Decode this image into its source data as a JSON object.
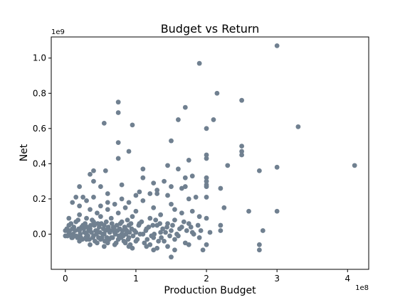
{
  "chart_data": {
    "type": "scatter",
    "title": "Budget vs Return",
    "xlabel": "Production Budget",
    "ylabel": "Net",
    "x_offset_label": "1e8",
    "y_offset_label": "1e9",
    "xlim": [
      -0.2,
      4.3
    ],
    "ylim": [
      -0.2,
      1.12
    ],
    "x_ticks": [
      0,
      1,
      2,
      3,
      4
    ],
    "x_tick_labels": [
      "0",
      "1",
      "2",
      "3",
      "4"
    ],
    "y_ticks": [
      0.0,
      0.2,
      0.4,
      0.6,
      0.8,
      1.0
    ],
    "y_tick_labels": [
      "0.0",
      "0.2",
      "0.4",
      "0.6",
      "0.8",
      "1.0"
    ],
    "grid": false,
    "marker_color": "#708090",
    "points": [
      [
        3.0,
        1.07
      ],
      [
        1.9,
        0.97
      ],
      [
        2.15,
        0.8
      ],
      [
        2.5,
        0.76
      ],
      [
        0.75,
        0.75
      ],
      [
        1.7,
        0.72
      ],
      [
        0.75,
        0.69
      ],
      [
        2.1,
        0.65
      ],
      [
        1.6,
        0.65
      ],
      [
        0.55,
        0.63
      ],
      [
        0.95,
        0.62
      ],
      [
        3.3,
        0.61
      ],
      [
        2.0,
        0.6
      ],
      [
        1.5,
        0.53
      ],
      [
        0.75,
        0.52
      ],
      [
        2.5,
        0.5
      ],
      [
        2.5,
        0.47
      ],
      [
        2.5,
        0.45
      ],
      [
        0.9,
        0.47
      ],
      [
        2.0,
        0.45
      ],
      [
        2.0,
        0.43
      ],
      [
        1.75,
        0.42
      ],
      [
        4.1,
        0.39
      ],
      [
        2.3,
        0.39
      ],
      [
        3.0,
        0.38
      ],
      [
        1.45,
        0.39
      ],
      [
        0.75,
        0.43
      ],
      [
        1.1,
        0.37
      ],
      [
        1.6,
        0.37
      ],
      [
        2.75,
        0.36
      ],
      [
        0.4,
        0.36
      ],
      [
        0.57,
        0.36
      ],
      [
        0.35,
        0.34
      ],
      [
        1.8,
        0.33
      ],
      [
        1.7,
        0.32
      ],
      [
        2.0,
        0.32
      ],
      [
        1.1,
        0.32
      ],
      [
        1.4,
        0.3
      ],
      [
        1.25,
        0.29
      ],
      [
        2.0,
        0.3
      ],
      [
        2.0,
        0.28
      ],
      [
        2.0,
        0.27
      ],
      [
        0.8,
        0.28
      ],
      [
        0.4,
        0.3
      ],
      [
        0.5,
        0.27
      ],
      [
        0.2,
        0.27
      ],
      [
        1.65,
        0.26
      ],
      [
        1.7,
        0.27
      ],
      [
        1.5,
        0.27
      ],
      [
        1.3,
        0.25
      ],
      [
        2.2,
        0.26
      ],
      [
        1.05,
        0.24
      ],
      [
        0.6,
        0.23
      ],
      [
        1.0,
        0.22
      ],
      [
        0.15,
        0.21
      ],
      [
        0.25,
        0.21
      ],
      [
        0.4,
        0.21
      ],
      [
        0.8,
        0.2
      ],
      [
        1.2,
        0.23
      ],
      [
        1.3,
        0.23
      ],
      [
        1.45,
        0.22
      ],
      [
        1.75,
        0.2
      ],
      [
        1.85,
        0.21
      ],
      [
        2.0,
        0.21
      ],
      [
        0.1,
        0.18
      ],
      [
        0.3,
        0.19
      ],
      [
        0.6,
        0.18
      ],
      [
        0.9,
        0.18
      ],
      [
        1.1,
        0.19
      ],
      [
        0.2,
        0.16
      ],
      [
        0.5,
        0.16
      ],
      [
        0.7,
        0.17
      ],
      [
        1.5,
        0.17
      ],
      [
        2.25,
        0.15
      ],
      [
        0.35,
        0.14
      ],
      [
        0.6,
        0.14
      ],
      [
        0.85,
        0.15
      ],
      [
        1.25,
        0.15
      ],
      [
        1.55,
        0.14
      ],
      [
        2.6,
        0.13
      ],
      [
        3.0,
        0.13
      ],
      [
        1.8,
        0.13
      ],
      [
        0.45,
        0.12
      ],
      [
        0.75,
        0.12
      ],
      [
        1.0,
        0.13
      ],
      [
        1.65,
        0.12
      ],
      [
        0.2,
        0.11
      ],
      [
        0.5,
        0.1
      ],
      [
        0.95,
        0.1
      ],
      [
        1.35,
        0.11
      ],
      [
        1.9,
        0.1
      ],
      [
        0.05,
        0.09
      ],
      [
        0.3,
        0.09
      ],
      [
        0.65,
        0.09
      ],
      [
        1.2,
        0.09
      ],
      [
        1.55,
        0.08
      ],
      [
        2.0,
        0.09
      ],
      [
        0.15,
        0.07
      ],
      [
        0.4,
        0.07
      ],
      [
        0.8,
        0.07
      ],
      [
        1.05,
        0.06
      ],
      [
        1.45,
        0.06
      ],
      [
        1.75,
        0.06
      ],
      [
        0.05,
        0.05
      ],
      [
        0.25,
        0.05
      ],
      [
        0.55,
        0.05
      ],
      [
        0.9,
        0.05
      ],
      [
        1.3,
        0.05
      ],
      [
        1.65,
        0.04
      ],
      [
        2.2,
        0.05
      ],
      [
        0.1,
        0.03
      ],
      [
        0.35,
        0.03
      ],
      [
        0.6,
        0.03
      ],
      [
        0.85,
        0.03
      ],
      [
        1.15,
        0.03
      ],
      [
        1.5,
        0.02
      ],
      [
        2.05,
        0.01
      ],
      [
        2.2,
        0.02
      ],
      [
        2.8,
        0.02
      ],
      [
        0.0,
        0.02
      ],
      [
        0.2,
        0.02
      ],
      [
        0.45,
        0.02
      ],
      [
        0.7,
        0.01
      ],
      [
        1.0,
        0.01
      ],
      [
        1.35,
        0.01
      ],
      [
        1.8,
        0.01
      ],
      [
        0.05,
        0.0
      ],
      [
        0.3,
        0.0
      ],
      [
        0.55,
        0.0
      ],
      [
        0.8,
        0.0
      ],
      [
        1.1,
        0.0
      ],
      [
        1.6,
        -0.01
      ],
      [
        0.0,
        -0.01
      ],
      [
        0.15,
        -0.01
      ],
      [
        0.4,
        -0.01
      ],
      [
        0.65,
        -0.02
      ],
      [
        0.9,
        -0.02
      ],
      [
        1.25,
        -0.02
      ],
      [
        1.55,
        -0.03
      ],
      [
        1.9,
        -0.02
      ],
      [
        0.1,
        -0.02
      ],
      [
        0.3,
        -0.03
      ],
      [
        0.5,
        -0.03
      ],
      [
        0.75,
        -0.03
      ],
      [
        1.0,
        -0.04
      ],
      [
        1.4,
        -0.04
      ],
      [
        0.2,
        -0.04
      ],
      [
        0.45,
        -0.05
      ],
      [
        0.6,
        -0.05
      ],
      [
        0.85,
        -0.05
      ],
      [
        1.2,
        -0.06
      ],
      [
        1.7,
        -0.05
      ],
      [
        2.0,
        -0.06
      ],
      [
        0.35,
        -0.06
      ],
      [
        0.55,
        -0.07
      ],
      [
        0.9,
        -0.07
      ],
      [
        1.15,
        -0.07
      ],
      [
        1.45,
        -0.07
      ],
      [
        1.75,
        -0.06
      ],
      [
        2.75,
        -0.06
      ],
      [
        1.3,
        -0.08
      ],
      [
        1.55,
        -0.09
      ],
      [
        1.95,
        -0.09
      ],
      [
        2.75,
        -0.09
      ],
      [
        0.95,
        -0.08
      ],
      [
        1.25,
        -0.09
      ],
      [
        1.5,
        -0.13
      ],
      [
        0.7,
        -0.06
      ],
      [
        0.05,
        0.01
      ],
      [
        0.12,
        0.04
      ],
      [
        0.22,
        -0.02
      ],
      [
        0.28,
        0.06
      ],
      [
        0.38,
        0.08
      ],
      [
        0.42,
        -0.04
      ],
      [
        0.48,
        0.04
      ],
      [
        0.52,
        -0.02
      ],
      [
        0.58,
        0.07
      ],
      [
        0.62,
        -0.03
      ],
      [
        0.68,
        0.04
      ],
      [
        0.72,
        -0.05
      ],
      [
        0.78,
        0.06
      ],
      [
        0.82,
        -0.01
      ],
      [
        0.88,
        0.08
      ],
      [
        0.92,
        -0.06
      ],
      [
        0.98,
        0.02
      ],
      [
        1.02,
        -0.03
      ],
      [
        1.08,
        0.07
      ],
      [
        1.12,
        -0.05
      ],
      [
        1.18,
        0.04
      ],
      [
        1.22,
        -0.01
      ],
      [
        1.28,
        0.08
      ],
      [
        1.32,
        -0.04
      ],
      [
        1.38,
        0.03
      ],
      [
        1.42,
        0.01
      ],
      [
        0.08,
        0.06
      ],
      [
        0.18,
        0.08
      ],
      [
        0.26,
        0.03
      ],
      [
        0.32,
        -0.01
      ],
      [
        0.36,
        0.05
      ],
      [
        0.44,
        0.0
      ],
      [
        0.46,
        0.06
      ],
      [
        0.54,
        0.03
      ],
      [
        0.56,
        -0.04
      ],
      [
        0.64,
        0.02
      ],
      [
        0.66,
        0.06
      ],
      [
        0.74,
        0.02
      ],
      [
        0.76,
        -0.01
      ],
      [
        0.84,
        0.04
      ],
      [
        0.86,
        0.0
      ],
      [
        0.94,
        0.03
      ],
      [
        0.96,
        -0.01
      ],
      [
        1.04,
        0.05
      ],
      [
        1.06,
        0.0
      ],
      [
        1.14,
        0.02
      ],
      [
        1.16,
        -0.03
      ],
      [
        1.24,
        0.05
      ],
      [
        1.26,
        0.0
      ],
      [
        1.34,
        0.06
      ],
      [
        1.36,
        -0.02
      ],
      [
        1.44,
        0.04
      ],
      [
        1.48,
        -0.01
      ],
      [
        1.52,
        0.05
      ],
      [
        1.58,
        0.0
      ],
      [
        1.62,
        0.03
      ],
      [
        1.68,
        0.07
      ],
      [
        1.72,
        0.02
      ],
      [
        1.78,
        0.04
      ],
      [
        1.82,
        0.0
      ],
      [
        1.88,
        0.05
      ],
      [
        1.92,
        0.02
      ],
      [
        0.02,
        0.03
      ],
      [
        0.03,
        -0.01
      ],
      [
        0.06,
        0.02
      ],
      [
        0.09,
        -0.02
      ],
      [
        0.11,
        0.0
      ],
      [
        0.14,
        0.02
      ],
      [
        0.17,
        -0.02
      ],
      [
        0.19,
        0.03
      ],
      [
        0.21,
        0.0
      ],
      [
        0.23,
        0.04
      ],
      [
        0.24,
        -0.03
      ],
      [
        0.27,
        0.01
      ],
      [
        0.29,
        -0.02
      ],
      [
        0.31,
        0.04
      ],
      [
        0.33,
        0.02
      ],
      [
        0.34,
        -0.03
      ],
      [
        0.37,
        0.01
      ],
      [
        0.39,
        -0.02
      ],
      [
        0.41,
        0.05
      ],
      [
        0.43,
        0.02
      ],
      [
        0.47,
        -0.02
      ],
      [
        0.49,
        0.01
      ],
      [
        0.51,
        0.06
      ],
      [
        0.53,
        0.0
      ],
      [
        0.57,
        0.02
      ],
      [
        0.59,
        -0.02
      ],
      [
        0.61,
        0.04
      ],
      [
        0.63,
        0.01
      ],
      [
        0.67,
        -0.02
      ],
      [
        0.69,
        0.03
      ],
      [
        0.71,
        0.0
      ],
      [
        0.73,
        0.05
      ],
      [
        0.77,
        0.03
      ],
      [
        0.79,
        -0.02
      ],
      [
        0.81,
        0.02
      ],
      [
        0.83,
        -0.04
      ],
      [
        0.87,
        0.02
      ],
      [
        0.89,
        -0.03
      ],
      [
        0.91,
        0.01
      ],
      [
        0.93,
        0.06
      ]
    ]
  }
}
